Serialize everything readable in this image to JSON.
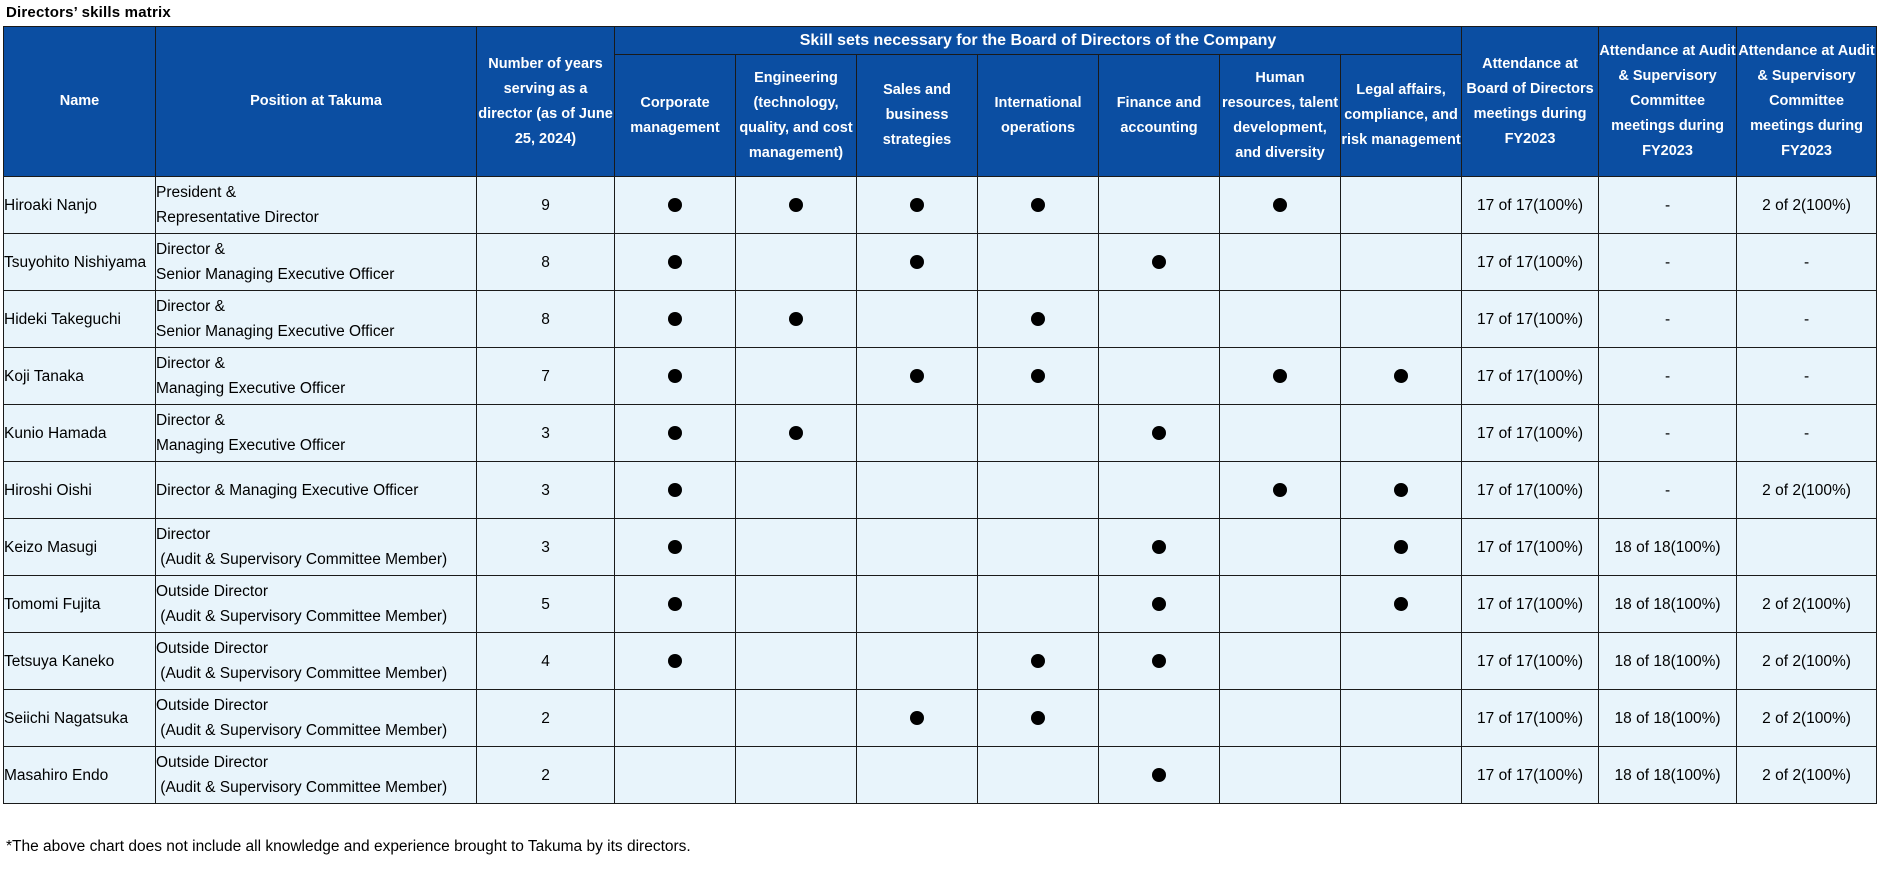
{
  "title": "Directors’ skills matrix",
  "headers": {
    "name": "Name",
    "position": "Position at Takuma",
    "years": "Number of years serving as a director (as of June 25, 2024)",
    "skills_group": "Skill sets necessary for the Board of Directors of the Company",
    "skills": [
      "Corporate management",
      "Engineering (technology, quality, and cost management)",
      "Sales and business strategies",
      "International operations",
      "Finance and accounting",
      "Human resources, talent development, and diversity",
      "Legal affairs, compliance, and risk management"
    ],
    "attendance_board": "Attendance at Board of Directors meetings during FY2023",
    "attendance_audit_1": "Attendance at Audit & Supervisory Committee meetings during FY2023",
    "attendance_audit_2": "Attendance at Audit & Supervisory Committee meetings during FY2023"
  },
  "skill_marker": "●",
  "rows": [
    {
      "name": "Hiroaki Nanjo",
      "position": "President &\nRepresentative Director",
      "years": "9",
      "skills": [
        true,
        true,
        true,
        true,
        false,
        true,
        false
      ],
      "board": "17 of 17(100%)",
      "audit1": "-",
      "audit2": "2 of 2(100%)"
    },
    {
      "name": "Tsuyohito Nishiyama",
      "position": "Director &\nSenior Managing Executive Officer",
      "years": "8",
      "skills": [
        true,
        false,
        true,
        false,
        true,
        false,
        false
      ],
      "board": "17 of 17(100%)",
      "audit1": "-",
      "audit2": "-"
    },
    {
      "name": "Hideki Takeguchi",
      "position": "Director &\nSenior Managing Executive Officer",
      "years": "8",
      "skills": [
        true,
        true,
        false,
        true,
        false,
        false,
        false
      ],
      "board": "17 of 17(100%)",
      "audit1": "-",
      "audit2": "-"
    },
    {
      "name": "Koji Tanaka",
      "position": "Director &\nManaging Executive Officer",
      "years": "7",
      "skills": [
        true,
        false,
        true,
        true,
        false,
        true,
        true
      ],
      "board": "17 of 17(100%)",
      "audit1": "-",
      "audit2": "-"
    },
    {
      "name": "Kunio Hamada",
      "position": "Director &\nManaging Executive Officer",
      "years": "3",
      "skills": [
        true,
        true,
        false,
        false,
        true,
        false,
        false
      ],
      "board": "17 of 17(100%)",
      "audit1": "-",
      "audit2": "-"
    },
    {
      "name": "Hiroshi Oishi",
      "position": "Director & Managing Executive Officer",
      "years": "3",
      "skills": [
        true,
        false,
        false,
        false,
        false,
        true,
        true
      ],
      "board": "17 of 17(100%)",
      "audit1": "-",
      "audit2": "2 of 2(100%)"
    },
    {
      "name": "Keizo Masugi",
      "position": "Director\n (Audit & Supervisory Committee Member)",
      "years": "3",
      "skills": [
        true,
        false,
        false,
        false,
        true,
        false,
        true
      ],
      "board": "17 of 17(100%)",
      "audit1": "18 of 18(100%)",
      "audit2": ""
    },
    {
      "name": "Tomomi Fujita",
      "position": "Outside Director\n (Audit & Supervisory Committee Member)",
      "years": "5",
      "skills": [
        true,
        false,
        false,
        false,
        true,
        false,
        true
      ],
      "board": "17 of 17(100%)",
      "audit1": "18 of 18(100%)",
      "audit2": "2 of 2(100%)"
    },
    {
      "name": "Tetsuya Kaneko",
      "position": "Outside Director\n (Audit & Supervisory Committee Member)",
      "years": "4",
      "skills": [
        true,
        false,
        false,
        true,
        true,
        false,
        false
      ],
      "board": "17 of 17(100%)",
      "audit1": "18 of 18(100%)",
      "audit2": "2 of 2(100%)"
    },
    {
      "name": "Seiichi Nagatsuka",
      "position": "Outside Director\n (Audit & Supervisory Committee Member)",
      "years": "2",
      "skills": [
        false,
        false,
        true,
        true,
        false,
        false,
        false
      ],
      "board": "17 of 17(100%)",
      "audit1": "18 of 18(100%)",
      "audit2": "2 of 2(100%)"
    },
    {
      "name": "Masahiro Endo",
      "position": "Outside Director\n (Audit & Supervisory Committee Member)",
      "years": "2",
      "skills": [
        false,
        false,
        false,
        false,
        true,
        false,
        false
      ],
      "board": "17 of 17(100%)",
      "audit1": "18 of 18(100%)",
      "audit2": "2 of 2(100%)"
    }
  ],
  "footnote": "*The above chart does not include all knowledge and experience brought to Takuma by its directors.",
  "colors": {
    "header_bg": "#0b4ea2",
    "header_text": "#ffffff",
    "cell_bg": "#e8f4fb",
    "border": "#1a1a1a",
    "marker": "#000000"
  }
}
